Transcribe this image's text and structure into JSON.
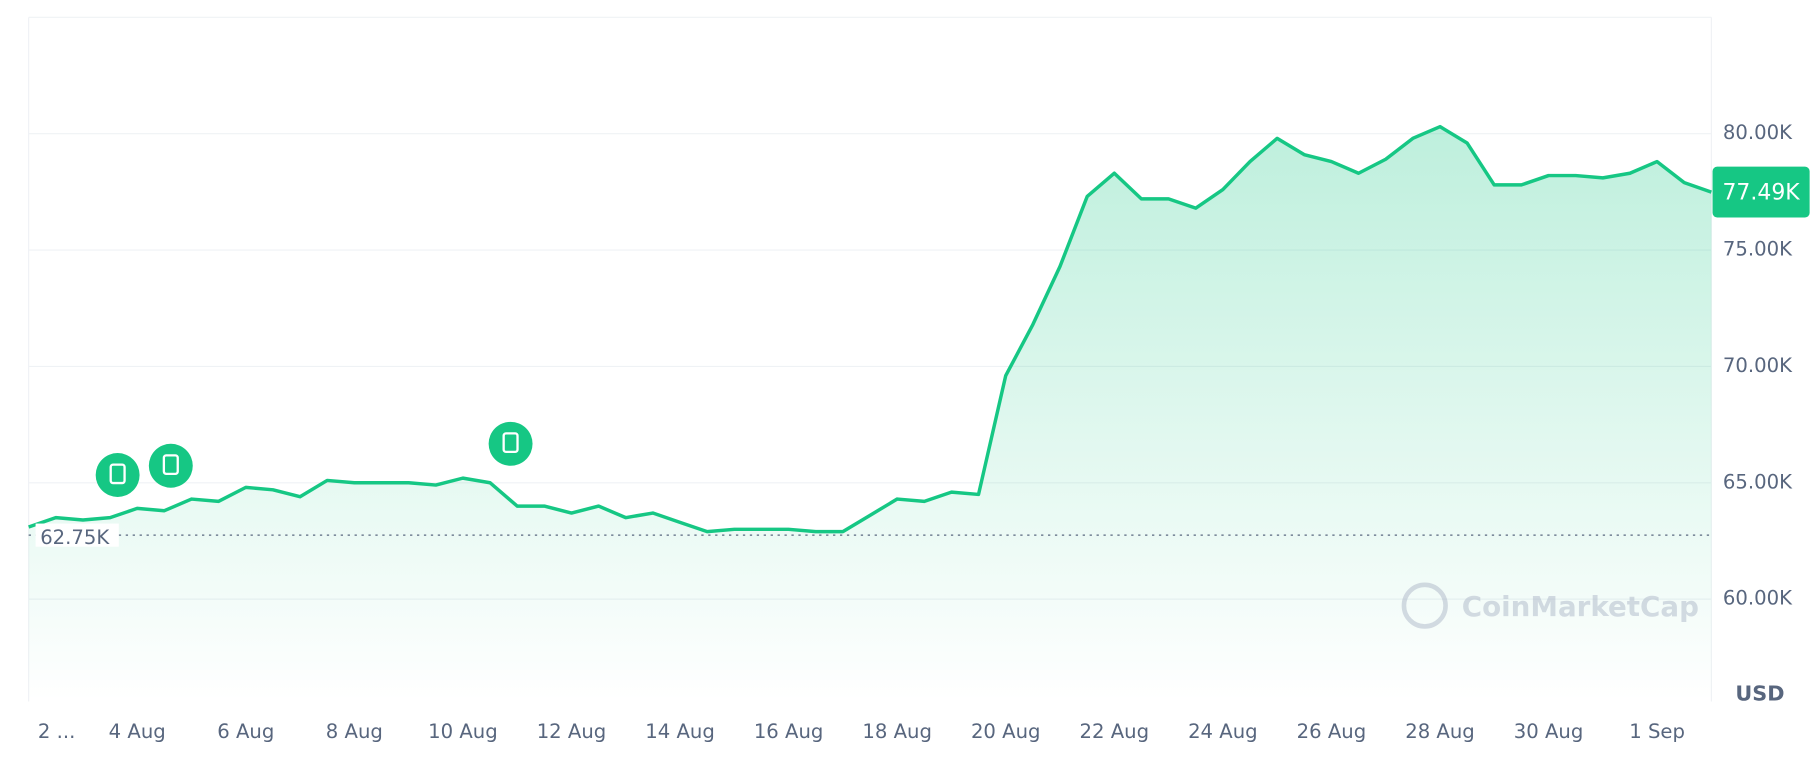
{
  "chart_data": {
    "type": "line",
    "x": [
      0,
      0.5,
      1,
      1.5,
      2,
      2.5,
      3,
      3.5,
      4,
      4.5,
      5,
      5.5,
      6,
      6.5,
      7,
      7.5,
      8,
      8.5,
      9,
      9.5,
      10,
      10.5,
      11,
      11.5,
      12,
      12.5,
      13,
      13.5,
      14,
      14.5,
      15,
      15.5,
      16,
      16.5,
      17,
      17.5,
      18,
      18.5,
      19,
      19.5,
      20,
      20.5,
      21,
      21.5,
      22,
      22.5,
      23,
      23.5,
      24,
      24.5,
      25,
      25.5,
      26,
      26.5,
      27,
      27.5,
      28,
      28.5,
      29,
      29.5,
      30,
      30.5,
      31
    ],
    "series": [
      {
        "color": "#16c784",
        "values": [
          63.1,
          63.5,
          63.4,
          63.5,
          63.9,
          63.8,
          64.3,
          64.2,
          64.8,
          64.7,
          64.4,
          65.1,
          65.0,
          65.0,
          65.0,
          64.9,
          65.2,
          65.0,
          64.0,
          64.0,
          63.7,
          64.0,
          63.5,
          63.7,
          63.3,
          62.9,
          63.0,
          63.0,
          63.0,
          62.9,
          62.9,
          63.6,
          64.3,
          64.2,
          64.6,
          64.5,
          69.6,
          71.8,
          74.3,
          77.3,
          78.3,
          77.2,
          77.2,
          76.8,
          77.6,
          78.8,
          79.8,
          79.1,
          78.8,
          78.3,
          78.9,
          79.8,
          80.3,
          79.6,
          77.8,
          77.8,
          78.2,
          78.2,
          78.1,
          78.3,
          78.8,
          77.9,
          77.49
        ]
      }
    ],
    "xlim": [
      0,
      31
    ],
    "xticks": [
      {
        "value": 0,
        "label": "2 ..."
      },
      {
        "value": 2,
        "label": "4 Aug"
      },
      {
        "value": 4,
        "label": "6 Aug"
      },
      {
        "value": 6,
        "label": "8 Aug"
      },
      {
        "value": 8,
        "label": "10 Aug"
      },
      {
        "value": 10,
        "label": "12 Aug"
      },
      {
        "value": 12,
        "label": "14 Aug"
      },
      {
        "value": 14,
        "label": "16 Aug"
      },
      {
        "value": 16,
        "label": "18 Aug"
      },
      {
        "value": 18,
        "label": "20 Aug"
      },
      {
        "value": 20,
        "label": "22 Aug"
      },
      {
        "value": 22,
        "label": "24 Aug"
      },
      {
        "value": 24,
        "label": "26 Aug"
      },
      {
        "value": 26,
        "label": "28 Aug"
      },
      {
        "value": 28,
        "label": "30 Aug"
      },
      {
        "value": 30,
        "label": "1 Sep"
      }
    ],
    "ylim": [
      55.6,
      85
    ],
    "yticks": [
      {
        "value": 60,
        "label": "60.00K"
      },
      {
        "value": 65,
        "label": "65.00K"
      },
      {
        "value": 70,
        "label": "70.00K"
      },
      {
        "value": 75,
        "label": "75.00K"
      },
      {
        "value": 80,
        "label": "80.00K"
      }
    ],
    "grid": true,
    "current_price": {
      "value": 77.49,
      "label": "77.49K"
    },
    "baseline": {
      "value": 62.75,
      "label": "62.75K"
    },
    "currency": "USD",
    "watermark": "CoinMarketCap"
  }
}
